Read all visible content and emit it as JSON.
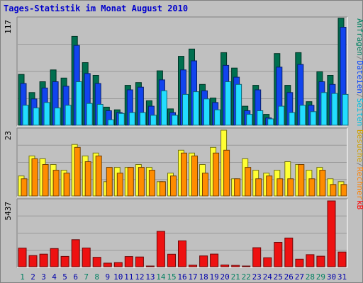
{
  "chart_data": {
    "type": "bar",
    "title": "Tages-Statistik im Monat August 2010",
    "days": [
      "1",
      "2",
      "3",
      "4",
      "5",
      "6",
      "7",
      "8",
      "9",
      "10",
      "11",
      "12",
      "13",
      "14",
      "15",
      "16",
      "17",
      "18",
      "19",
      "20",
      "21",
      "22",
      "23",
      "24",
      "25",
      "26",
      "27",
      "28",
      "29",
      "30",
      "31"
    ],
    "weekend_days": [
      "1",
      "7",
      "8",
      "14",
      "15",
      "21",
      "22",
      "28",
      "29"
    ],
    "panels": [
      {
        "id": "top",
        "scale_max_label": "117",
        "scale_max": 117,
        "side_label_parts": [
          {
            "text": "Anfragen",
            "color": "#008060"
          },
          {
            "text": "/",
            "color": "#808080"
          },
          {
            "text": "Dateien",
            "color": "#0040ff"
          },
          {
            "text": "/",
            "color": "#808080"
          },
          {
            "text": "Seiten",
            "color": "#00c0e0"
          }
        ],
        "series": [
          {
            "name": "Anfragen",
            "color": "#006f4f",
            "values": [
              56,
              36,
              48,
              61,
              52,
              98,
              69,
              55,
              20,
              17,
              44,
              47,
              27,
              60,
              18,
              76,
              84,
              45,
              30,
              80,
              63,
              21,
              44,
              12,
              79,
              44,
              80,
              26,
              59,
              55,
              118
            ]
          },
          {
            "name": "Dateien",
            "color": "#1144ee",
            "values": [
              46,
              29,
              41,
              48,
              43,
              88,
              57,
              46,
              16,
              14,
              39,
              42,
              21,
              50,
              14,
              61,
              71,
              38,
              25,
              66,
              53,
              16,
              39,
              8,
              64,
              36,
              67,
              22,
              48,
              45,
              108
            ]
          },
          {
            "name": "Seiten",
            "color": "#22ddff",
            "values": [
              22,
              19,
              25,
              19,
              22,
              48,
              24,
              23,
              6,
              13,
              14,
              14,
              11,
              38,
              11,
              34,
              37,
              29,
              17,
              48,
              45,
              12,
              16,
              7,
              21,
              14,
              22,
              15,
              36,
              35,
              34
            ]
          }
        ]
      },
      {
        "id": "middle",
        "scale_max_label": "23",
        "scale_max": 23,
        "side_label_parts": [
          {
            "text": "Besuche",
            "color": "#d0a000"
          },
          {
            "text": "/",
            "color": "#808080"
          },
          {
            "text": "Rechner",
            "color": "#ff8000"
          }
        ],
        "series": [
          {
            "name": "Besuche",
            "color": "#ffff33",
            "values": [
              7,
              14,
              13,
              11,
              9,
              18,
              14,
              15,
              5,
              10,
              10,
              11,
              10,
              5,
              8,
              16,
              15,
              11,
              17,
              23,
              6,
              13,
              9,
              8,
              9,
              12,
              11,
              9,
              10,
              6,
              5
            ]
          },
          {
            "name": "Rechner",
            "color": "#ff8c00",
            "values": [
              6,
              13,
              11,
              9,
              8,
              17,
              12,
              14,
              10,
              8,
              10,
              10,
              9,
              5,
              7,
              15,
              14,
              8,
              15,
              16,
              6,
              10,
              6,
              7,
              6,
              6,
              11,
              6,
              9,
              4,
              4
            ]
          }
        ]
      },
      {
        "id": "bottom",
        "scale_max_label": "5437",
        "scale_max": 5437,
        "side_label_parts": [
          {
            "text": "kB",
            "color": "#ff0000"
          }
        ],
        "series": [
          {
            "name": "kB",
            "color": "#ee1111",
            "values": [
              1539,
              923,
              1043,
              1503,
              856,
              2233,
              1548,
              778,
              300,
              343,
              842,
              808,
              58,
              2922,
              1037,
              2139,
              126,
              895,
              1045,
              148,
              112,
              58,
              1573,
              745,
              2018,
              2372,
              623,
              999,
              872,
              5437,
              1218
            ]
          }
        ]
      }
    ]
  }
}
